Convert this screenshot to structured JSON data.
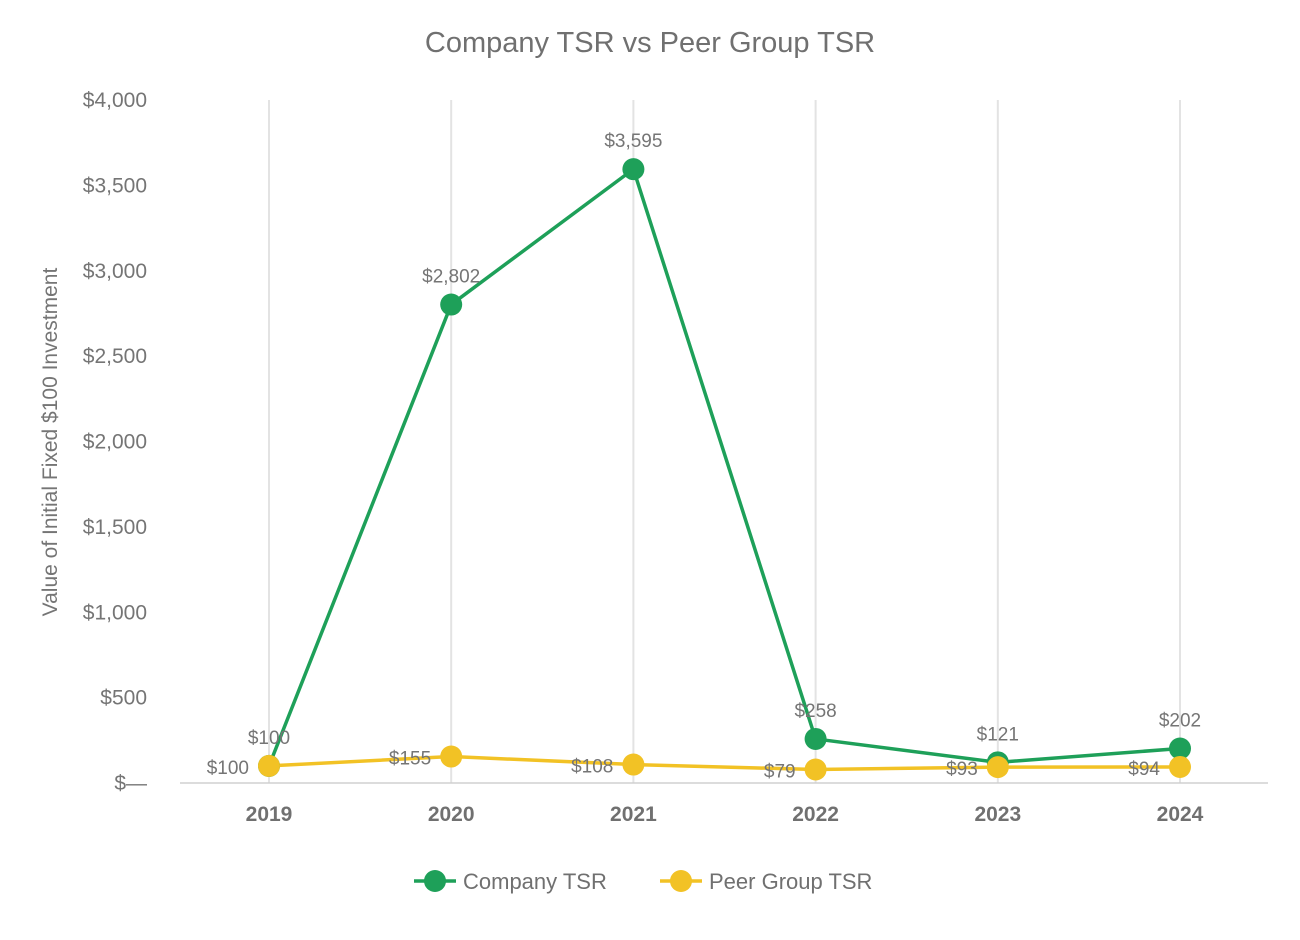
{
  "colors": {
    "company": "#1ea059",
    "peer": "#f2c225",
    "text": "#757575"
  },
  "chart_data": {
    "type": "line",
    "title": "Company TSR vs Peer Group TSR",
    "xlabel": "",
    "ylabel": "Value of Initial Fixed $100 Investment",
    "categories": [
      "2019",
      "2020",
      "2021",
      "2022",
      "2023",
      "2024"
    ],
    "ylim": [
      0,
      4000
    ],
    "yticks": [
      0,
      500,
      1000,
      1500,
      2000,
      2500,
      3000,
      3500,
      4000
    ],
    "ytick_labels": [
      "$—",
      "$500",
      "$1,000",
      "$1,500",
      "$2,000",
      "$2,500",
      "$3,000",
      "$3,500",
      "$4,000"
    ],
    "grid": "vertical",
    "legend": "bottom-center",
    "series": [
      {
        "name": "Company TSR",
        "color": "#1ea059",
        "values": [
          100,
          2802,
          3595,
          258,
          121,
          202
        ],
        "labels": [
          "$100",
          "$2,802",
          "$3,595",
          "$258",
          "$121",
          "$202"
        ]
      },
      {
        "name": "Peer Group TSR",
        "color": "#f2c225",
        "values": [
          100,
          155,
          108,
          79,
          93,
          94
        ],
        "labels": [
          "$100",
          "$155",
          "$108",
          "$79",
          "$93",
          "$94"
        ]
      }
    ]
  }
}
